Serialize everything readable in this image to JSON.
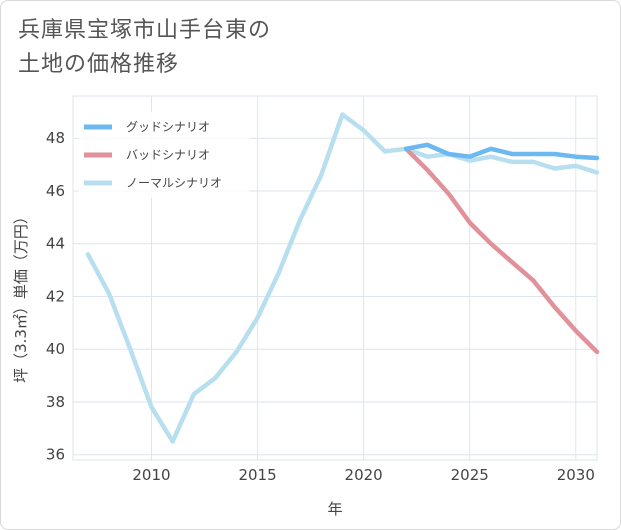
{
  "title_lines": [
    "兵庫県宝塚市山手台東の",
    "土地の価格推移"
  ],
  "chart_data": {
    "type": "line",
    "xlabel": "年",
    "ylabel": "坪（3.3㎡）単価（万円）",
    "xlim": [
      2006.3,
      2031
    ],
    "ylim": [
      35.8,
      49.6
    ],
    "xticks": [
      2010,
      2015,
      2020,
      2025,
      2030
    ],
    "yticks": [
      36,
      38,
      40,
      42,
      44,
      46,
      48
    ],
    "grid": true,
    "legend_position": "top-left",
    "series": [
      {
        "name": "グッドシナリオ",
        "color": "#6cb8f0",
        "x": [
          2022,
          2023,
          2024,
          2025,
          2026,
          2027,
          2028,
          2029,
          2030,
          2031
        ],
        "y": [
          47.6,
          47.75,
          47.4,
          47.3,
          47.6,
          47.4,
          47.4,
          47.4,
          47.3,
          47.25
        ]
      },
      {
        "name": "バッドシナリオ",
        "color": "#e0919a",
        "x": [
          2022,
          2023,
          2024,
          2025,
          2026,
          2027,
          2028,
          2029,
          2030,
          2031
        ],
        "y": [
          47.6,
          46.8,
          45.9,
          44.8,
          44.0,
          43.3,
          42.6,
          41.6,
          40.7,
          39.9
        ]
      },
      {
        "name": "ノーマルシナリオ",
        "color": "#b8dff0",
        "x": [
          2007,
          2008,
          2009,
          2010,
          2011,
          2012,
          2013,
          2014,
          2015,
          2016,
          2017,
          2018,
          2019,
          2020,
          2021,
          2022,
          2023,
          2024,
          2025,
          2026,
          2027,
          2028,
          2029,
          2030,
          2031
        ],
        "y": [
          43.6,
          42.1,
          40.0,
          37.8,
          36.5,
          38.3,
          38.9,
          39.9,
          41.2,
          42.9,
          44.9,
          46.6,
          48.9,
          48.3,
          47.5,
          47.6,
          47.3,
          47.4,
          47.15,
          47.3,
          47.1,
          47.1,
          46.85,
          46.95,
          46.7
        ]
      }
    ]
  }
}
